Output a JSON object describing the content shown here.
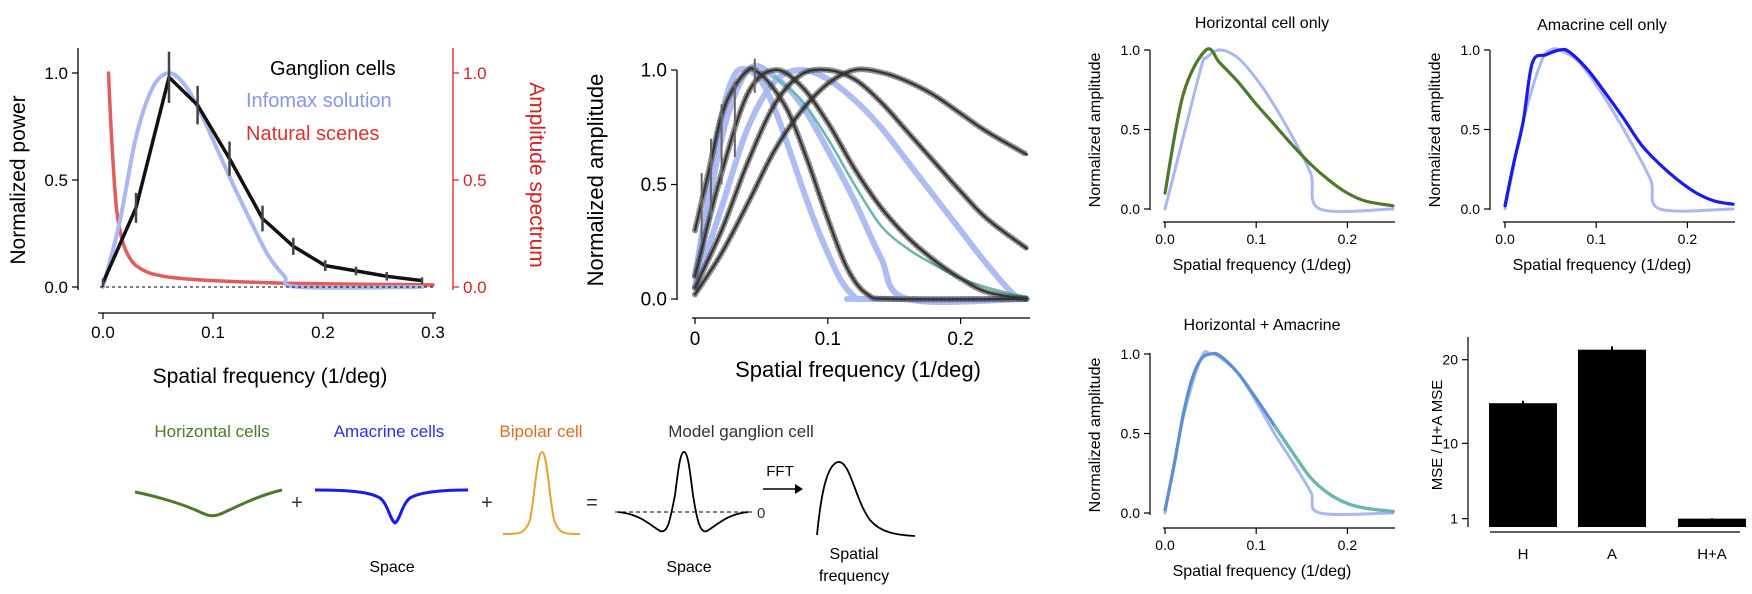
{
  "colors": {
    "ganglion": "#111111",
    "infomax": "#a9b8f2",
    "natural": "#e04a4a",
    "horizontal": "#4d7a28",
    "amacrine": "#1a1aee",
    "bipolar": "#e8a030",
    "teal": "#68b8ad",
    "blend": "#5a8fd6",
    "errorbar": "#444444"
  },
  "panelA": {
    "legend": {
      "ganglion": "Ganglion cells",
      "infomax": "Infomax solution",
      "natural": "Natural scenes"
    },
    "xlabel": "Spatial frequency (1/deg)",
    "ylabel_left": "Normalized power",
    "ylabel_right": "Amplitude spectrum",
    "xticks": [
      "0.0",
      "0.1",
      "0.2",
      "0.3"
    ],
    "yticks_left": [
      "0.0",
      "0.5",
      "1.0"
    ],
    "yticks_right": [
      "0.0",
      "0.5",
      "1.0"
    ]
  },
  "panelB": {
    "xlabel": "Spatial frequency (1/deg)",
    "ylabel": "Normalized amplitude",
    "xticks": [
      "0",
      "0.1",
      "0.2"
    ],
    "yticks": [
      "0.0",
      "0.5",
      "1.0"
    ]
  },
  "schematic": {
    "horizontal": "Horizontal cells",
    "amacrine": "Amacrine cells",
    "bipolar": "Bipolar cell",
    "model": "Model ganglion cell",
    "plus": "+",
    "equals": "=",
    "fft": "FFT",
    "zero": "0",
    "space1": "Space",
    "space2": "Space",
    "sf_line1": "Spatial",
    "sf_line2": "frequency"
  },
  "small_panels": {
    "xlabel": "Spatial frequency (1/deg)",
    "ylabel": "Normalized amplitude",
    "xticks": [
      "0.0",
      "0.1",
      "0.2"
    ],
    "yticks": [
      "0.0",
      "0.5",
      "1.0"
    ],
    "h_title": "Horizontal cell only",
    "a_title": "Amacrine cell only",
    "ha_title": "Horizontal + Amacrine"
  },
  "bar_panel": {
    "ylabel": "MSE / H+A MSE",
    "yticks": [
      "1",
      "10",
      "20"
    ]
  },
  "chart_data": [
    {
      "type": "line",
      "legend_position": "top-right",
      "x_range": [
        0,
        0.3
      ],
      "y_range_left": [
        0,
        1.1
      ],
      "y_range_right": [
        0,
        1.1
      ],
      "series": [
        {
          "name": "Ganglion cells",
          "x": [
            0.0,
            0.03,
            0.06,
            0.086,
            0.115,
            0.145,
            0.173,
            0.202,
            0.23,
            0.258,
            0.29
          ],
          "y": [
            0.02,
            0.37,
            0.98,
            0.85,
            0.6,
            0.32,
            0.19,
            0.1,
            0.075,
            0.05,
            0.03
          ],
          "err": [
            0.02,
            0.07,
            0.12,
            0.09,
            0.08,
            0.06,
            0.04,
            0.025,
            0.02,
            0.02,
            0.015
          ]
        },
        {
          "name": "Infomax solution",
          "x": [
            0.0,
            0.015,
            0.03,
            0.045,
            0.06,
            0.075,
            0.09,
            0.105,
            0.12,
            0.135,
            0.15,
            0.165,
            0.178,
            0.29
          ],
          "y": [
            0.0,
            0.3,
            0.7,
            0.93,
            1.0,
            0.94,
            0.8,
            0.63,
            0.46,
            0.3,
            0.15,
            0.05,
            0.0,
            0.0
          ]
        },
        {
          "name": "Natural scenes",
          "x": [
            0.005,
            0.008,
            0.012,
            0.016,
            0.02,
            0.025,
            0.03,
            0.04,
            0.05,
            0.07,
            0.1,
            0.15,
            0.2,
            0.3
          ],
          "y": [
            1.0,
            0.68,
            0.38,
            0.25,
            0.18,
            0.13,
            0.1,
            0.07,
            0.055,
            0.04,
            0.03,
            0.02,
            0.015,
            0.01
          ],
          "axis": "right"
        }
      ]
    },
    {
      "type": "line",
      "x_range": [
        0,
        0.25
      ],
      "y_range": [
        0,
        1.0
      ],
      "series": [
        {
          "x": [
            0.0,
            0.01,
            0.02,
            0.03,
            0.04,
            0.045,
            0.055,
            0.07,
            0.085,
            0.1,
            0.115,
            0.13,
            0.15,
            0.25
          ],
          "y": [
            0.3,
            0.55,
            0.8,
            0.93,
            1.0,
            1.0,
            0.95,
            0.82,
            0.6,
            0.35,
            0.13,
            0.02,
            0.0,
            0.0
          ]
        },
        {
          "x": [
            0.0,
            0.02,
            0.04,
            0.06,
            0.08,
            0.1,
            0.12,
            0.14,
            0.16,
            0.18,
            0.2,
            0.22,
            0.25
          ],
          "y": [
            0.1,
            0.55,
            0.9,
            1.0,
            0.93,
            0.77,
            0.57,
            0.4,
            0.27,
            0.17,
            0.09,
            0.03,
            0.0
          ]
        },
        {
          "x": [
            0.0,
            0.02,
            0.04,
            0.06,
            0.08,
            0.1,
            0.12,
            0.14,
            0.16,
            0.18,
            0.2,
            0.22,
            0.25
          ],
          "y": [
            0.05,
            0.3,
            0.6,
            0.85,
            0.98,
            1.0,
            0.96,
            0.86,
            0.73,
            0.6,
            0.47,
            0.35,
            0.22
          ]
        },
        {
          "x": [
            0.0,
            0.02,
            0.04,
            0.06,
            0.08,
            0.1,
            0.12,
            0.14,
            0.16,
            0.18,
            0.2,
            0.22,
            0.25
          ],
          "y": [
            0.02,
            0.2,
            0.42,
            0.65,
            0.82,
            0.94,
            1.0,
            0.99,
            0.95,
            0.89,
            0.81,
            0.73,
            0.63
          ]
        },
        {
          "name": "Infomax solution",
          "x": [
            0.0,
            0.01,
            0.02,
            0.03,
            0.04,
            0.05,
            0.06,
            0.07,
            0.08,
            0.09,
            0.1,
            0.11,
            0.12,
            0.125,
            0.25
          ],
          "y": [
            0.1,
            0.45,
            0.8,
            0.98,
            1.0,
            0.95,
            0.83,
            0.67,
            0.5,
            0.34,
            0.2,
            0.08,
            0.01,
            0.0,
            0.0
          ]
        },
        {
          "name": "Infomax solution",
          "x": [
            0.0,
            0.02,
            0.04,
            0.06,
            0.08,
            0.1,
            0.12,
            0.14,
            0.16,
            0.25
          ],
          "y": [
            0.05,
            0.7,
            1.0,
            0.97,
            0.85,
            0.65,
            0.43,
            0.18,
            0.0,
            0.0
          ]
        },
        {
          "name": "Infomax solution",
          "x": [
            0.0,
            0.02,
            0.04,
            0.06,
            0.08,
            0.1,
            0.12,
            0.14,
            0.16,
            0.18,
            0.2,
            0.22,
            0.24,
            0.25
          ],
          "y": [
            0.05,
            0.4,
            0.75,
            0.95,
            1.0,
            0.96,
            0.87,
            0.75,
            0.6,
            0.45,
            0.3,
            0.15,
            0.02,
            0.0
          ]
        },
        {
          "x": [
            0.06,
            0.08,
            0.1,
            0.12,
            0.14,
            0.16,
            0.18,
            0.2,
            0.22,
            0.24,
            0.25
          ],
          "y": [
            0.97,
            0.87,
            0.7,
            0.5,
            0.32,
            0.22,
            0.15,
            0.09,
            0.05,
            0.02,
            0.01
          ]
        }
      ]
    },
    {
      "type": "line",
      "title": "Horizontal cell only",
      "x_range": [
        0,
        0.25
      ],
      "y_range": [
        0,
        1.0
      ],
      "series": [
        {
          "x": [
            0.0,
            0.02,
            0.04,
            0.045,
            0.06,
            0.08,
            0.1,
            0.12,
            0.14,
            0.16,
            0.17,
            0.25
          ],
          "y": [
            0.0,
            0.45,
            0.9,
            0.95,
            1.0,
            0.95,
            0.82,
            0.65,
            0.45,
            0.22,
            0.0,
            0.0
          ]
        },
        {
          "x": [
            0.0,
            0.02,
            0.045,
            0.06,
            0.08,
            0.1,
            0.12,
            0.14,
            0.16,
            0.18,
            0.2,
            0.22,
            0.25
          ],
          "y": [
            0.1,
            0.72,
            1.0,
            0.92,
            0.8,
            0.66,
            0.53,
            0.4,
            0.28,
            0.18,
            0.1,
            0.05,
            0.02
          ]
        }
      ]
    },
    {
      "type": "line",
      "title": "Amacrine cell only",
      "x_range": [
        0,
        0.25
      ],
      "y_range": [
        0,
        1.0
      ],
      "series": [
        {
          "x": [
            0.0,
            0.02,
            0.04,
            0.05,
            0.06,
            0.08,
            0.1,
            0.12,
            0.14,
            0.16,
            0.17,
            0.25
          ],
          "y": [
            0.0,
            0.55,
            0.93,
            1.0,
            1.0,
            0.93,
            0.78,
            0.6,
            0.4,
            0.18,
            0.0,
            0.0
          ]
        },
        {
          "x": [
            0.0,
            0.01,
            0.02,
            0.03,
            0.045,
            0.06,
            0.07,
            0.09,
            0.11,
            0.13,
            0.15,
            0.17,
            0.19,
            0.21,
            0.23,
            0.25
          ],
          "y": [
            0.02,
            0.3,
            0.55,
            0.92,
            0.97,
            1.0,
            0.99,
            0.88,
            0.73,
            0.57,
            0.4,
            0.28,
            0.18,
            0.1,
            0.05,
            0.03
          ]
        }
      ]
    },
    {
      "type": "line",
      "title": "Horizontal + Amacrine",
      "x_range": [
        0,
        0.25
      ],
      "y_range": [
        0,
        1.0
      ],
      "series": [
        {
          "x": [
            0.0,
            0.02,
            0.04,
            0.05,
            0.06,
            0.08,
            0.1,
            0.12,
            0.14,
            0.16,
            0.17,
            0.25
          ],
          "y": [
            0.0,
            0.6,
            0.98,
            1.0,
            0.98,
            0.88,
            0.7,
            0.5,
            0.32,
            0.13,
            0.0,
            0.0
          ]
        },
        {
          "x": [
            0.0,
            0.01,
            0.02,
            0.03,
            0.04,
            0.05,
            0.06,
            0.08,
            0.1,
            0.12,
            0.14,
            0.16,
            0.18,
            0.2,
            0.22,
            0.25
          ],
          "y": [
            0.02,
            0.3,
            0.62,
            0.85,
            0.97,
            1.0,
            0.99,
            0.88,
            0.72,
            0.55,
            0.38,
            0.22,
            0.12,
            0.06,
            0.03,
            0.01
          ]
        }
      ]
    },
    {
      "type": "bar",
      "categories": [
        "H",
        "A",
        "H+A"
      ],
      "values": [
        14.8,
        21.2,
        1.0
      ],
      "err": [
        0.3,
        0.4,
        0.05
      ],
      "ylabel": "MSE / H+A MSE",
      "y_range": [
        0,
        22
      ]
    }
  ]
}
